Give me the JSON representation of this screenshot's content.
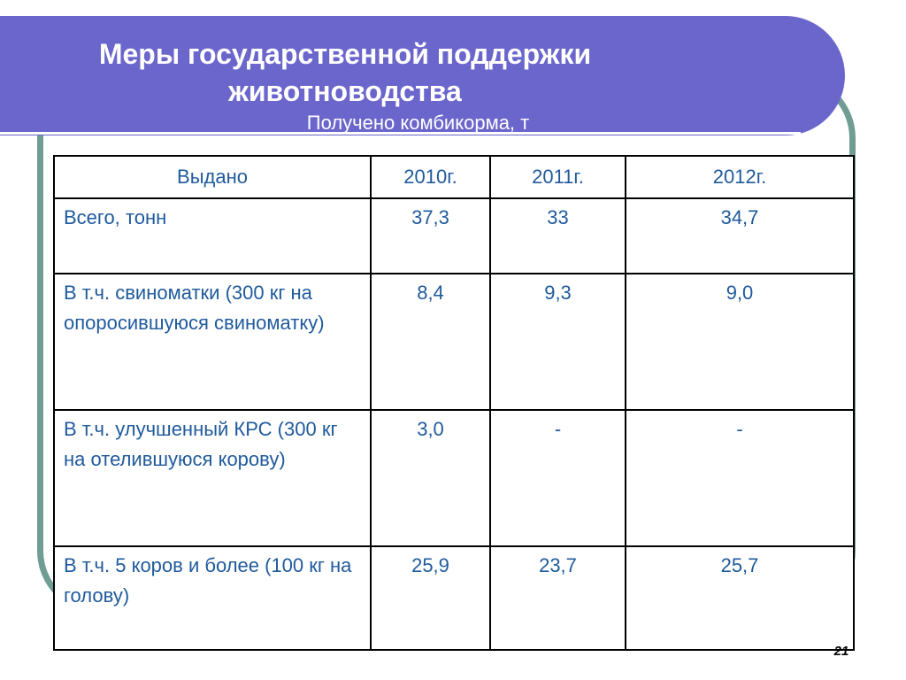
{
  "slide": {
    "title_line1": "Меры государственной поддержки",
    "title_line2": "животноводства",
    "subtitle": "Получено комбикорма, т",
    "page_number": "21"
  },
  "colors": {
    "banner": "#6b66cc",
    "frame": "#6f9c93",
    "table_text": "#1f5a9c"
  },
  "table": {
    "headers": [
      "Выдано",
      "2010г.",
      "2011г.",
      "2012г."
    ],
    "rows": [
      {
        "label": "Всего, тонн",
        "v2010": "37,3",
        "v2011": "33",
        "v2012": "34,7"
      },
      {
        "label": "В т.ч. свиноматки (300 кг на опоросившуюся свиноматку)",
        "v2010": "8,4",
        "v2011": "9,3",
        "v2012": "9,0"
      },
      {
        "label": "В т.ч. улучшенный КРС (300 кг на отелившуюся корову)",
        "v2010": "3,0",
        "v2011": "-",
        "v2012": "-"
      },
      {
        "label": "В т.ч. 5 коров и более (100 кг на голову)",
        "v2010": "25,9",
        "v2011": "23,7",
        "v2012": "25,7"
      }
    ]
  }
}
